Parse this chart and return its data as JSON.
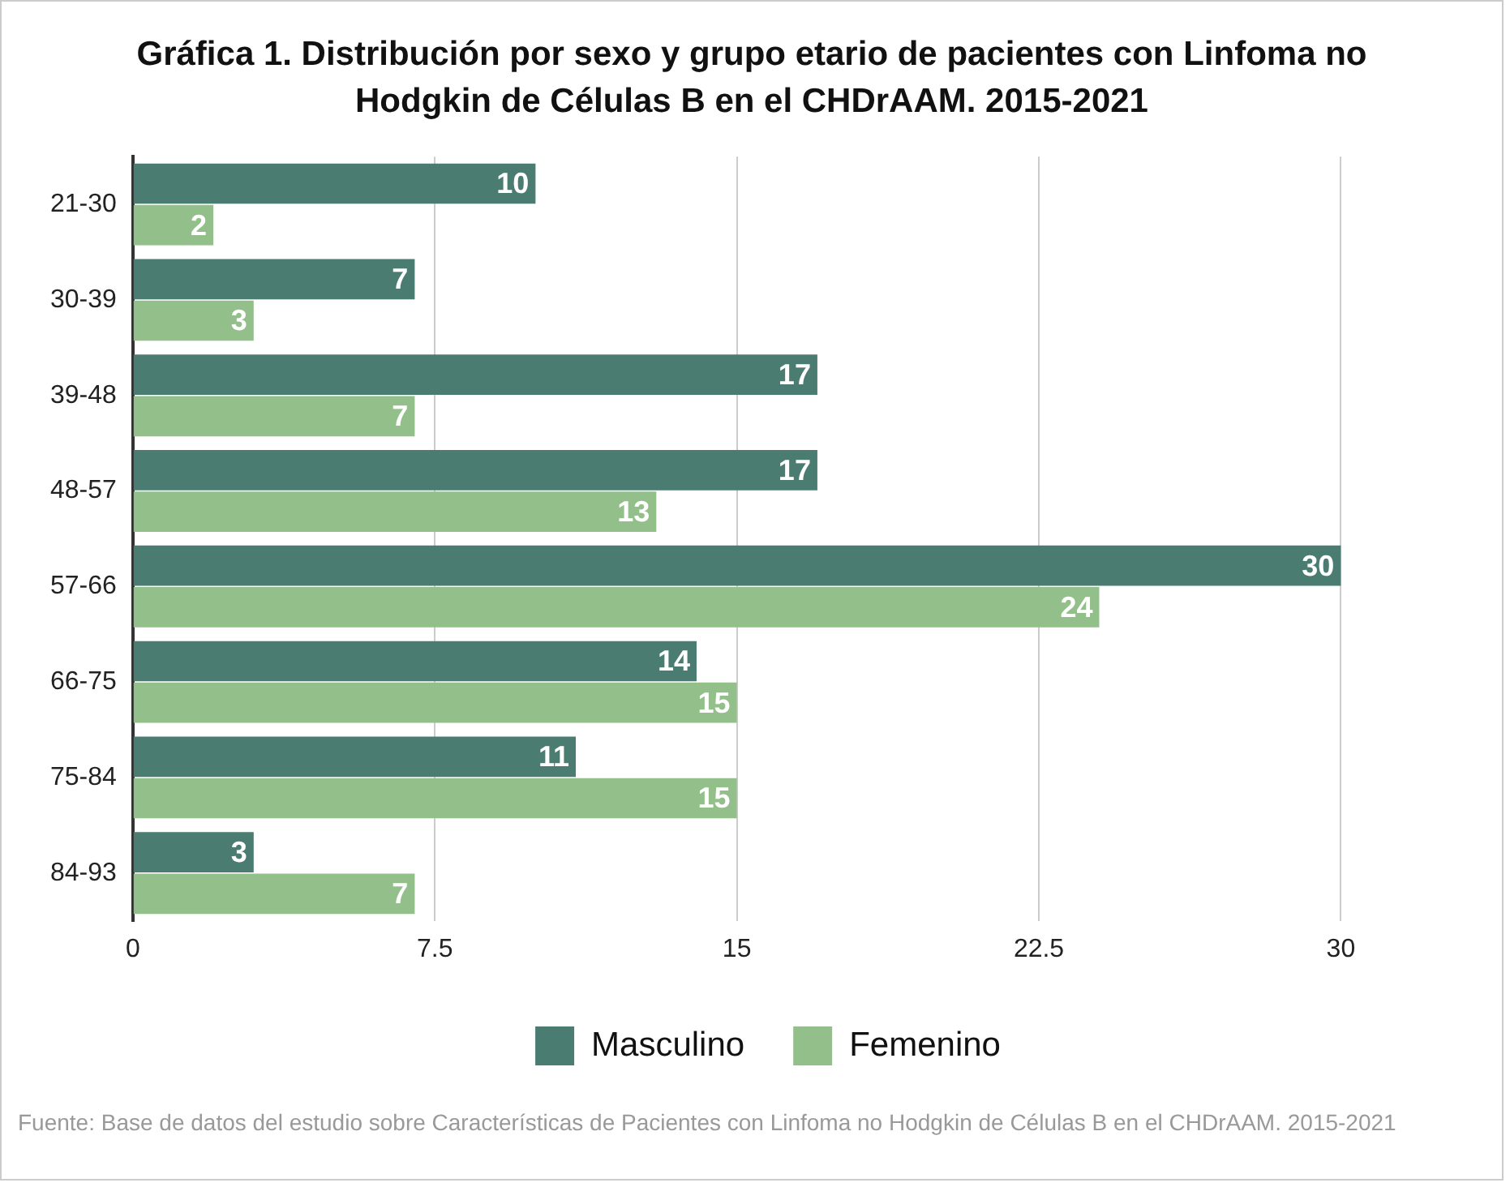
{
  "chart_data": {
    "type": "bar",
    "orientation": "horizontal",
    "title": "Gráfica 1. Distribución por sexo y grupo etario de pacientes con Linfoma no Hodgkin de Células B en el CHDrAAM. 2015-2021",
    "categories": [
      "21-30",
      "30-39",
      "39-48",
      "48-57",
      "57-66",
      "66-75",
      "75-84",
      "84-93"
    ],
    "series": [
      {
        "name": "Masculino",
        "color": "#4a7c72",
        "values": [
          10,
          7,
          17,
          17,
          30,
          14,
          11,
          3
        ]
      },
      {
        "name": "Femenino",
        "color": "#93c08a",
        "values": [
          2,
          3,
          7,
          13,
          24,
          15,
          15,
          7
        ]
      }
    ],
    "xlim": [
      0,
      34
    ],
    "xticks": [
      0,
      7.5,
      15,
      22.5,
      30
    ],
    "grid": "x",
    "legend": "bottom",
    "data_labels": true,
    "annotations": [
      "Fuente: Base de datos del estudio sobre Características de Pacientes con Linfoma no Hodgkin de Células B en el CHDrAAM. 2015-2021"
    ]
  }
}
